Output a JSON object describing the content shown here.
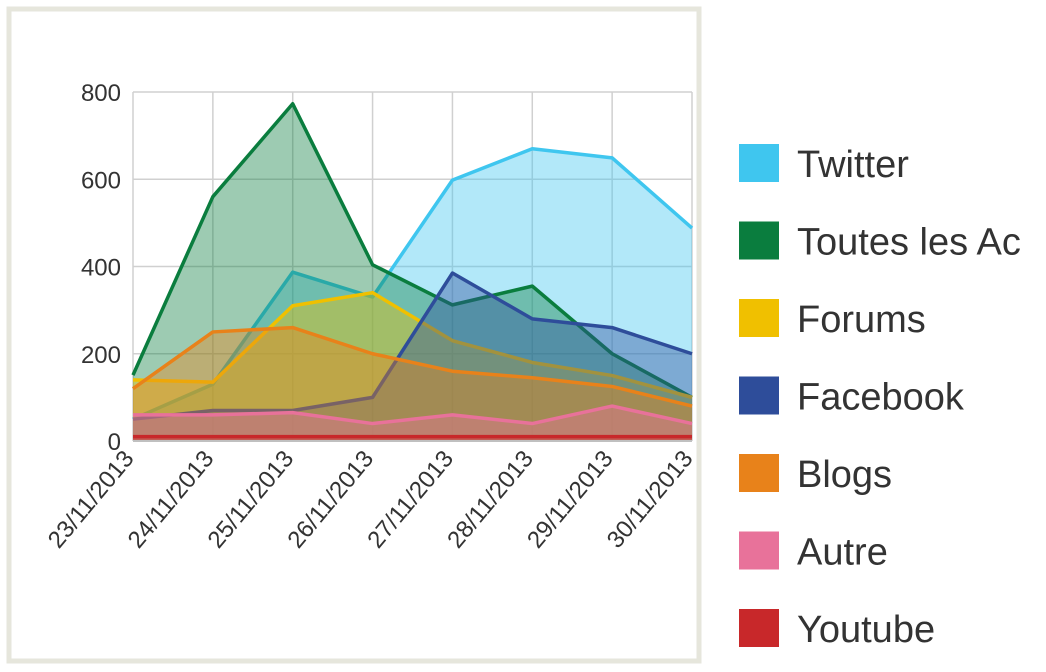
{
  "chart_data": {
    "type": "area",
    "categories": [
      "23/11/2013",
      "24/11/2013",
      "25/11/2013",
      "26/11/2013",
      "27/11/2013",
      "28/11/2013",
      "29/11/2013",
      "30/11/2013"
    ],
    "series": [
      {
        "name": "Twitter",
        "color": "#3fc6ef",
        "values": [
          50,
          130,
          387,
          330,
          598,
          670,
          649,
          488
        ]
      },
      {
        "name": "Toutes les Ac",
        "color": "#0a7d3e",
        "values": [
          151,
          560,
          773,
          404,
          312,
          355,
          200,
          100
        ]
      },
      {
        "name": "Forums",
        "color": "#f0c000",
        "values": [
          140,
          135,
          310,
          340,
          230,
          180,
          150,
          100
        ]
      },
      {
        "name": "Facebook",
        "color": "#2e4d9a",
        "values": [
          50,
          70,
          70,
          100,
          385,
          280,
          260,
          200
        ]
      },
      {
        "name": "Blogs",
        "color": "#e8821a",
        "values": [
          120,
          250,
          260,
          200,
          160,
          145,
          125,
          80
        ]
      },
      {
        "name": "Autre",
        "color": "#e8729a",
        "values": [
          60,
          60,
          65,
          40,
          60,
          40,
          80,
          40
        ]
      },
      {
        "name": "Youtube",
        "color": "#c8282a",
        "values": [
          10,
          10,
          10,
          10,
          10,
          10,
          10,
          10
        ]
      }
    ],
    "ylim": [
      0,
      800
    ],
    "yticks": [
      0,
      200,
      400,
      600,
      800
    ],
    "grid": true,
    "legend": "right"
  }
}
